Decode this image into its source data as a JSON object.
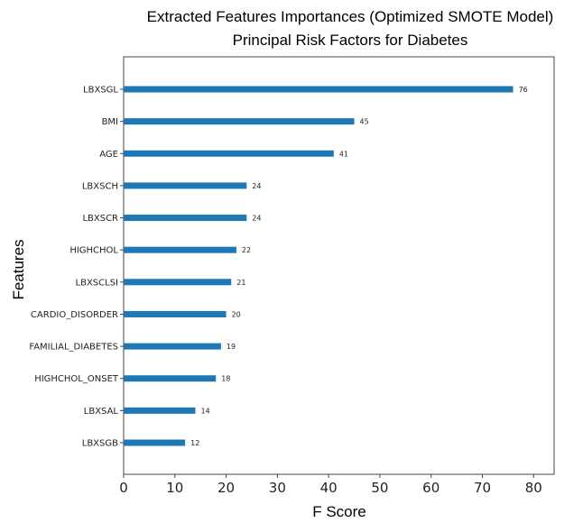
{
  "chart_data": {
    "type": "bar",
    "orientation": "horizontal",
    "title": "Extracted Features Importances (Optimized SMOTE Model)",
    "subtitle": "Principal Risk Factors for Diabetes",
    "xlabel": "F Score",
    "ylabel": "Features",
    "xlim": [
      0,
      84
    ],
    "xticks": [
      0,
      10,
      20,
      30,
      40,
      50,
      60,
      70,
      80
    ],
    "categories": [
      "LBXSGL",
      "BMI",
      "AGE",
      "LBXSCH",
      "LBXSCR",
      "HIGHCHOL",
      "LBXSCLSI",
      "CARDIO_DISORDER",
      "FAMILIAL_DIABETES",
      "HIGHCHOL_ONSET",
      "LBXSAL",
      "LBXSGB"
    ],
    "values": [
      76,
      45,
      41,
      24,
      24,
      22,
      21,
      20,
      19,
      18,
      14,
      12
    ],
    "bar_color": "#1f77b4",
    "grid": false
  }
}
